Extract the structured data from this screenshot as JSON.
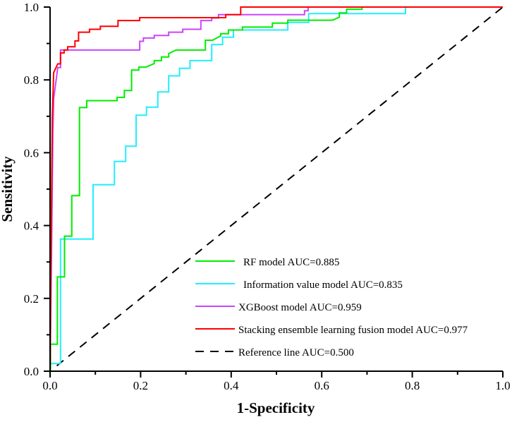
{
  "chart_data": {
    "type": "line",
    "title": "",
    "xlabel": "1-Specificity",
    "ylabel": "Sensitivity",
    "xlim": [
      0,
      1
    ],
    "ylim": [
      0,
      1
    ],
    "grid": false,
    "legend_position": "bottom-right",
    "xticks": [
      "0.0",
      "0.2",
      "0.4",
      "0.6",
      "0.8",
      "1.0"
    ],
    "yticks": [
      "0.0",
      "0.2",
      "0.4",
      "0.6",
      "0.8",
      "1.0"
    ],
    "series": [
      {
        "name": "RF model AUC=0.885",
        "color": "#00ee00",
        "dashed": false,
        "points": [
          [
            0,
            0
          ],
          [
            0.001,
            0
          ],
          [
            0.001,
            0.074
          ],
          [
            0.016,
            0.074
          ],
          [
            0.016,
            0.259
          ],
          [
            0.032,
            0.259
          ],
          [
            0.032,
            0.371
          ],
          [
            0.048,
            0.371
          ],
          [
            0.048,
            0.482
          ],
          [
            0.065,
            0.482
          ],
          [
            0.065,
            0.724
          ],
          [
            0.081,
            0.724
          ],
          [
            0.081,
            0.743
          ],
          [
            0.148,
            0.743
          ],
          [
            0.148,
            0.752
          ],
          [
            0.164,
            0.752
          ],
          [
            0.164,
            0.771
          ],
          [
            0.18,
            0.771
          ],
          [
            0.18,
            0.827
          ],
          [
            0.196,
            0.827
          ],
          [
            0.196,
            0.835
          ],
          [
            0.212,
            0.835
          ],
          [
            0.23,
            0.845
          ],
          [
            0.23,
            0.853
          ],
          [
            0.246,
            0.853
          ],
          [
            0.246,
            0.863
          ],
          [
            0.262,
            0.863
          ],
          [
            0.262,
            0.872
          ],
          [
            0.278,
            0.882
          ],
          [
            0.343,
            0.882
          ],
          [
            0.343,
            0.909
          ],
          [
            0.359,
            0.909
          ],
          [
            0.377,
            0.921
          ],
          [
            0.377,
            0.927
          ],
          [
            0.394,
            0.927
          ],
          [
            0.394,
            0.937
          ],
          [
            0.425,
            0.937
          ],
          [
            0.425,
            0.945
          ],
          [
            0.491,
            0.945
          ],
          [
            0.491,
            0.956
          ],
          [
            0.525,
            0.956
          ],
          [
            0.525,
            0.964
          ],
          [
            0.624,
            0.964
          ],
          [
            0.639,
            0.972
          ],
          [
            0.639,
            0.984
          ],
          [
            0.655,
            0.984
          ],
          [
            0.655,
            0.994
          ],
          [
            0.689,
            0.994
          ],
          [
            0.689,
            1.0
          ],
          [
            1,
            1
          ]
        ]
      },
      {
        "name": "Information value model AUC=0.835",
        "color": "#22eeff",
        "dashed": false,
        "points": [
          [
            0.002,
            0.021
          ],
          [
            0.023,
            0.021
          ],
          [
            0.023,
            0.363
          ],
          [
            0.095,
            0.363
          ],
          [
            0.095,
            0.512
          ],
          [
            0.142,
            0.512
          ],
          [
            0.142,
            0.576
          ],
          [
            0.167,
            0.576
          ],
          [
            0.167,
            0.618
          ],
          [
            0.19,
            0.618
          ],
          [
            0.19,
            0.703
          ],
          [
            0.213,
            0.703
          ],
          [
            0.213,
            0.725
          ],
          [
            0.238,
            0.725
          ],
          [
            0.238,
            0.767
          ],
          [
            0.262,
            0.767
          ],
          [
            0.262,
            0.811
          ],
          [
            0.286,
            0.811
          ],
          [
            0.286,
            0.832
          ],
          [
            0.309,
            0.832
          ],
          [
            0.309,
            0.853
          ],
          [
            0.357,
            0.853
          ],
          [
            0.357,
            0.897
          ],
          [
            0.381,
            0.897
          ],
          [
            0.381,
            0.917
          ],
          [
            0.405,
            0.917
          ],
          [
            0.405,
            0.937
          ],
          [
            0.525,
            0.937
          ],
          [
            0.525,
            0.958
          ],
          [
            0.571,
            0.958
          ],
          [
            0.571,
            0.982
          ],
          [
            0.785,
            0.982
          ],
          [
            0.785,
            1.0
          ],
          [
            1,
            1
          ]
        ]
      },
      {
        "name": "XGBoost model AUC=0.959",
        "color": "#cc44ff",
        "dashed": false,
        "points": [
          [
            0,
            0
          ],
          [
            0.003,
            0.3
          ],
          [
            0.006,
            0.65
          ],
          [
            0.008,
            0.748
          ],
          [
            0.017,
            0.834
          ],
          [
            0.023,
            0.834
          ],
          [
            0.023,
            0.882
          ],
          [
            0.198,
            0.882
          ],
          [
            0.198,
            0.906
          ],
          [
            0.206,
            0.906
          ],
          [
            0.206,
            0.915
          ],
          [
            0.23,
            0.915
          ],
          [
            0.23,
            0.922
          ],
          [
            0.262,
            0.922
          ],
          [
            0.262,
            0.931
          ],
          [
            0.293,
            0.931
          ],
          [
            0.293,
            0.939
          ],
          [
            0.333,
            0.939
          ],
          [
            0.333,
            0.963
          ],
          [
            0.357,
            0.963
          ],
          [
            0.357,
            0.97
          ],
          [
            0.372,
            0.97
          ],
          [
            0.372,
            0.979
          ],
          [
            0.562,
            0.979
          ],
          [
            0.562,
            0.99
          ],
          [
            0.57,
            0.99
          ],
          [
            0.57,
            1.0
          ],
          [
            1,
            1
          ]
        ]
      },
      {
        "name": "Stacking ensemble learning fusion model AUC=0.977",
        "color": "#ff0000",
        "dashed": false,
        "points": [
          [
            0,
            0
          ],
          [
            0.002,
            0.3
          ],
          [
            0.005,
            0.7
          ],
          [
            0.008,
            0.82
          ],
          [
            0.017,
            0.844
          ],
          [
            0.023,
            0.844
          ],
          [
            0.023,
            0.874
          ],
          [
            0.031,
            0.874
          ],
          [
            0.031,
            0.882
          ],
          [
            0.039,
            0.882
          ],
          [
            0.039,
            0.891
          ],
          [
            0.055,
            0.891
          ],
          [
            0.055,
            0.907
          ],
          [
            0.063,
            0.907
          ],
          [
            0.063,
            0.931
          ],
          [
            0.087,
            0.931
          ],
          [
            0.087,
            0.939
          ],
          [
            0.111,
            0.939
          ],
          [
            0.111,
            0.947
          ],
          [
            0.15,
            0.947
          ],
          [
            0.15,
            0.963
          ],
          [
            0.198,
            0.963
          ],
          [
            0.198,
            0.971
          ],
          [
            0.388,
            0.971
          ],
          [
            0.388,
            0.979
          ],
          [
            0.421,
            0.979
          ],
          [
            0.421,
            1.0
          ],
          [
            1,
            1
          ]
        ]
      },
      {
        "name": "Reference line AUC=0.500",
        "color": "#000000",
        "dashed": true,
        "points": [
          [
            0.015,
            0.015
          ],
          [
            1,
            1
          ]
        ]
      }
    ]
  }
}
